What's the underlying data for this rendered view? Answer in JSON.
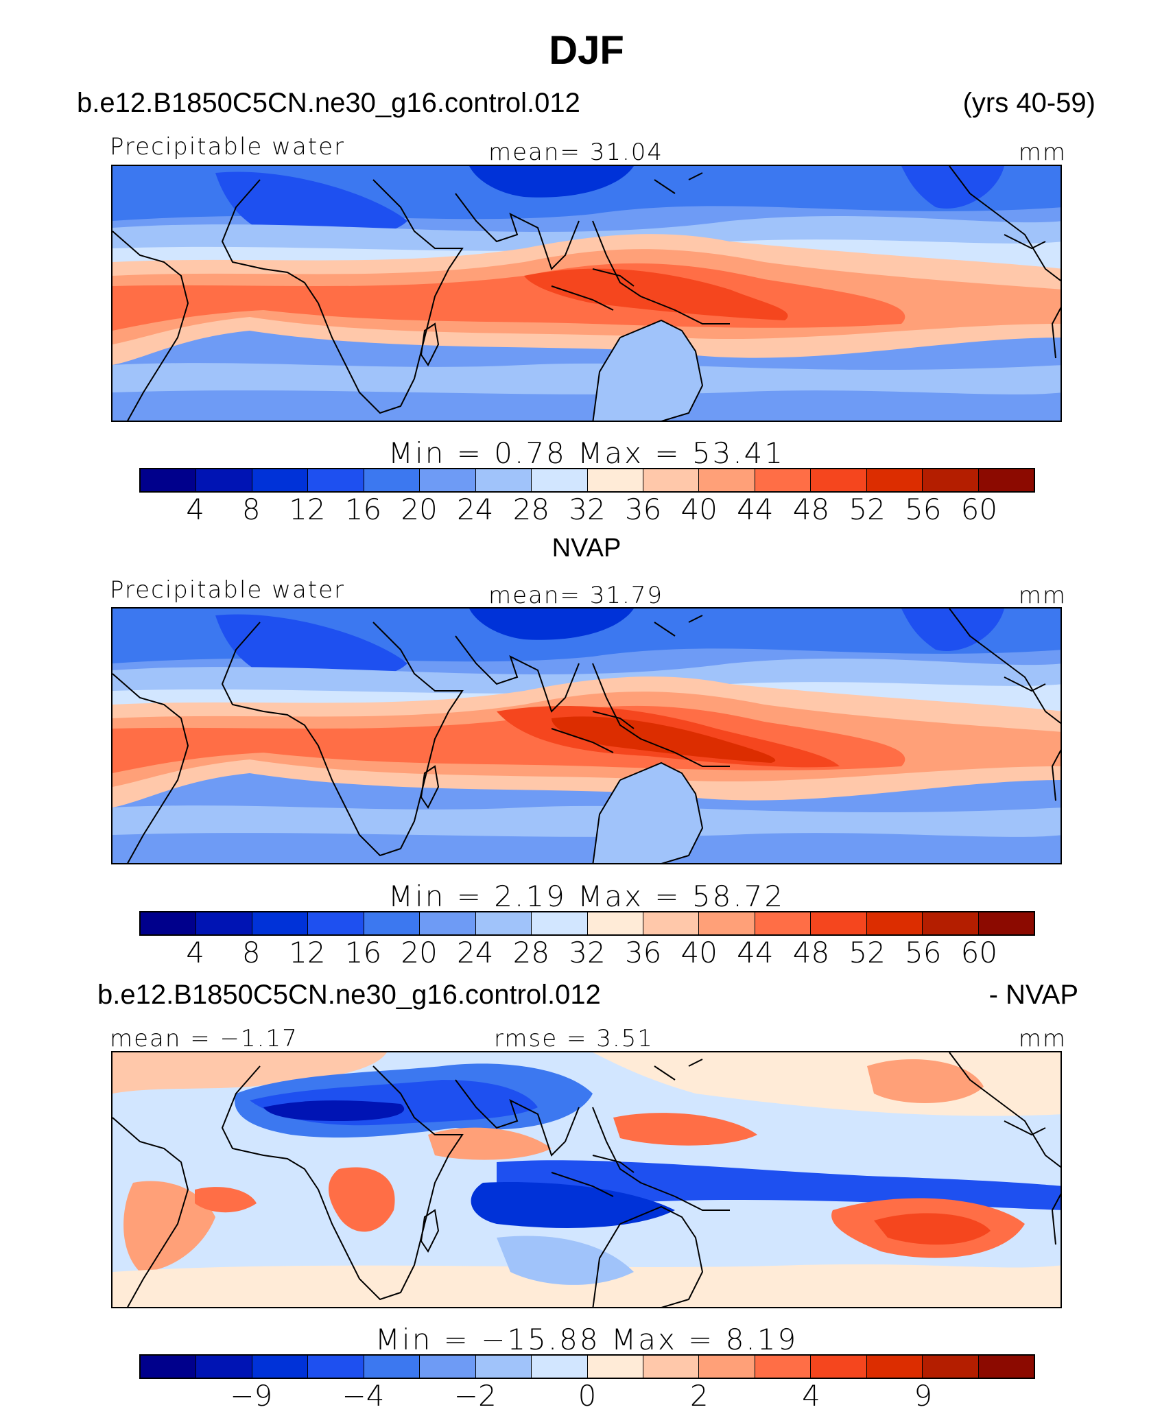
{
  "title": "DJF",
  "case_name": "b.e12.B1850C5CN.ne30_g16.control.012",
  "years": "(yrs 40-59)",
  "panels": [
    {
      "left_label": "Precipitable water",
      "center_label": "mean=   31.04",
      "units": "mm",
      "minmax": "Min  =     0.78  Max  =    53.41",
      "kind": "model"
    },
    {
      "title": "NVAP",
      "left_label": "Precipitable water",
      "center_label": "mean=   31.79",
      "units": "mm",
      "minmax": "Min  =     2.19  Max  =    58.72",
      "kind": "obs"
    },
    {
      "title_left": "b.e12.B1850C5CN.ne30_g16.control.012",
      "title_right": "- NVAP",
      "left_label": "mean  =   −1.17",
      "center_label": "rmse  =      3.51",
      "units": "mm",
      "minmax": "Min  =  −15.88  Max  =     8.19",
      "kind": "diff"
    }
  ],
  "colorbar_colors": [
    "#00008C",
    "#0014B4",
    "#0032D8",
    "#1E50F0",
    "#3C78F0",
    "#6E9BF5",
    "#A0C3FA",
    "#D2E6FF",
    "#FFEBD7",
    "#FFC8AA",
    "#FFA078",
    "#FF6E46",
    "#F5461E",
    "#DC2D00",
    "#B41E00",
    "#8C0A00"
  ],
  "colorbar_labels_abs": [
    "4",
    "8",
    "12",
    "16",
    "20",
    "24",
    "28",
    "32",
    "36",
    "40",
    "44",
    "48",
    "52",
    "56",
    "60"
  ],
  "colorbar_labels_diff": [
    "−9",
    "",
    "−4",
    "",
    "−2",
    "",
    "0",
    "",
    "2",
    "",
    "4",
    "",
    "9"
  ]
}
